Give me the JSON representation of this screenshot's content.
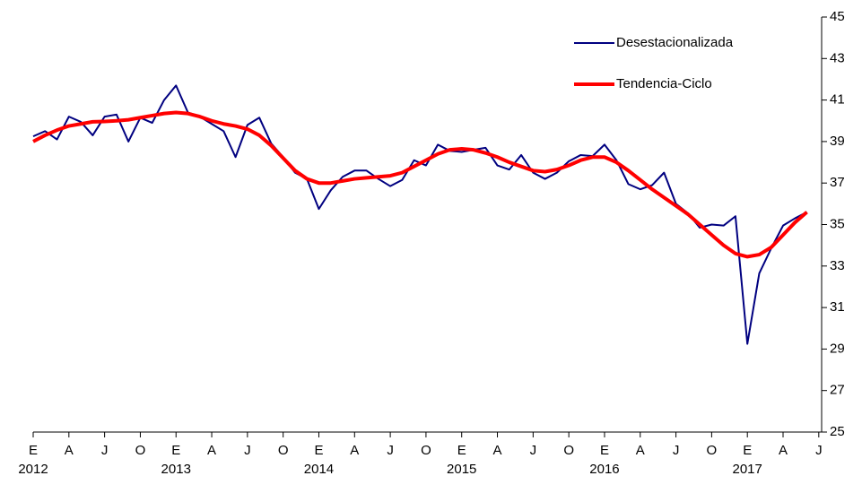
{
  "chart_data": {
    "type": "line",
    "categories": [
      "E",
      null,
      null,
      "A",
      null,
      null,
      "J",
      null,
      null,
      "O",
      null,
      null,
      "E",
      null,
      null,
      "A",
      null,
      null,
      "J",
      null,
      null,
      "O",
      null,
      null,
      "E",
      null,
      null,
      "A",
      null,
      null,
      "J",
      null,
      null,
      "O",
      null,
      null,
      "E",
      null,
      null,
      "A",
      null,
      null,
      "J",
      null,
      null,
      "O",
      null,
      null,
      "E",
      null,
      null,
      "A",
      null,
      null,
      "J",
      null,
      null,
      "O",
      null,
      null,
      "E",
      null,
      null,
      "A",
      null,
      null,
      "J"
    ],
    "year_labels": [
      "2012",
      null,
      null,
      null,
      null,
      null,
      null,
      null,
      null,
      null,
      null,
      null,
      "2013",
      null,
      null,
      null,
      null,
      null,
      null,
      null,
      null,
      null,
      null,
      null,
      "2014",
      null,
      null,
      null,
      null,
      null,
      null,
      null,
      null,
      null,
      null,
      null,
      "2015",
      null,
      null,
      null,
      null,
      null,
      null,
      null,
      null,
      null,
      null,
      null,
      "2016",
      null,
      null,
      null,
      null,
      null,
      null,
      null,
      null,
      null,
      null,
      null,
      "2017",
      null,
      null,
      null,
      null,
      null,
      null
    ],
    "series": [
      {
        "name": "Desestacionalizada",
        "color": "#000080",
        "width": 2,
        "values": [
          39.25,
          39.5,
          39.1,
          40.2,
          39.95,
          39.3,
          40.2,
          40.3,
          39.0,
          40.15,
          39.9,
          41.0,
          41.7,
          40.4,
          40.2,
          39.85,
          39.5,
          38.25,
          39.8,
          40.15,
          38.9,
          38.25,
          37.5,
          37.2,
          35.75,
          36.65,
          37.3,
          37.6,
          37.6,
          37.2,
          36.85,
          37.15,
          38.1,
          37.85,
          38.85,
          38.55,
          38.5,
          38.6,
          38.7,
          37.85,
          37.65,
          38.35,
          37.5,
          37.2,
          37.5,
          38.05,
          38.35,
          38.3,
          38.85,
          38.1,
          36.95,
          36.7,
          36.9,
          37.5,
          36.0,
          35.55,
          34.85,
          35.0,
          34.95,
          35.4,
          29.25,
          32.65,
          33.85,
          34.95,
          35.3,
          35.6,
          null
        ]
      },
      {
        "name": "Tendencia-Ciclo",
        "color": "#ff0000",
        "width": 4,
        "values": [
          39.0,
          39.3,
          39.55,
          39.75,
          39.85,
          39.95,
          39.97,
          40.0,
          40.05,
          40.15,
          40.25,
          40.35,
          40.4,
          40.35,
          40.2,
          40.0,
          39.85,
          39.75,
          39.6,
          39.3,
          38.8,
          38.2,
          37.6,
          37.2,
          37.0,
          37.0,
          37.1,
          37.2,
          37.25,
          37.3,
          37.35,
          37.5,
          37.8,
          38.1,
          38.4,
          38.6,
          38.65,
          38.6,
          38.45,
          38.25,
          38.0,
          37.8,
          37.6,
          37.55,
          37.65,
          37.85,
          38.1,
          38.25,
          38.25,
          38.0,
          37.6,
          37.15,
          36.7,
          36.3,
          35.9,
          35.5,
          35.0,
          34.5,
          34.0,
          33.6,
          33.45,
          33.55,
          33.9,
          34.5,
          35.1,
          35.6,
          null
        ]
      }
    ],
    "ylim": [
      25,
      45
    ],
    "yticks": [
      25,
      27,
      29,
      31,
      33,
      35,
      37,
      39,
      41,
      43,
      45
    ],
    "grid": false
  }
}
